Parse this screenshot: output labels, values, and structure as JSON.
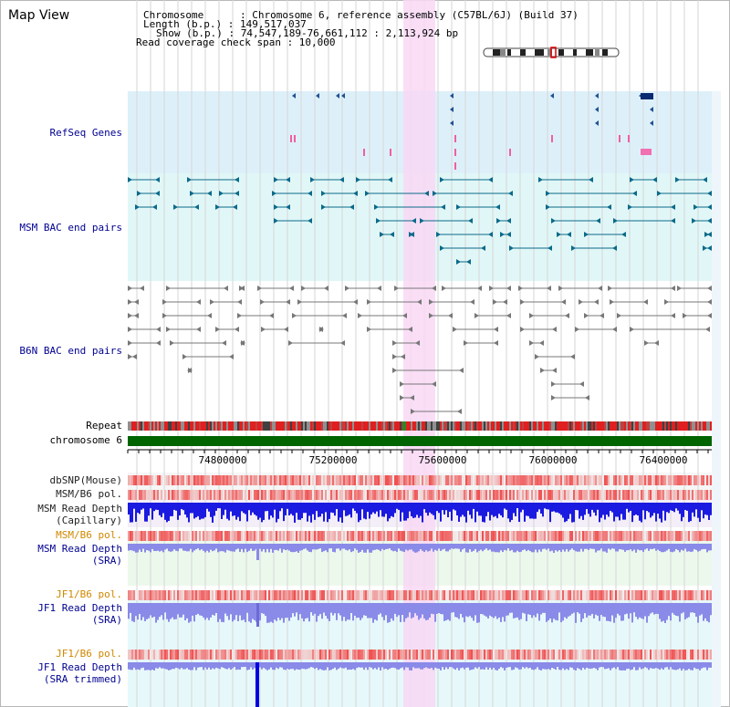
{
  "header": {
    "title": "Map View",
    "chromosome_line": "Chromosome      : Chromosome 6, reference assembly (C57BL/6J) (Build 37)",
    "length_line": "Length (b.p.) : 149,517,037",
    "show_line": "Show (b.p.) : 74,547,189-76,661,112 : 2,113,924 bp",
    "coverage_line": "Read coverage check span : 10,000"
  },
  "tracks": {
    "refseq": "RefSeq Genes",
    "msm_bac": "MSM BAC end pairs",
    "b6n_bac": "B6N BAC end pairs",
    "repeat": "Repeat",
    "chromosome": "chromosome 6",
    "dbsnp": "dbSNP(Mouse)",
    "msm_b6_pol_1": "MSM/B6 pol.",
    "msm_read_depth_cap_1": "MSM Read Depth",
    "msm_read_depth_cap_2": "(Capillary)",
    "msm_b6_pol_2": "MSM/B6 pol.",
    "msm_read_depth_sra_1": "MSM Read Depth",
    "msm_read_depth_sra_2": "(SRA)",
    "jf1_b6_pol_1": "JF1/B6 pol.",
    "jf1_read_depth_sra_1": "JF1 Read Depth",
    "jf1_read_depth_sra_2": "(SRA)",
    "jf1_b6_pol_2": "JF1/B6 pol.",
    "jf1_read_depth_trim_1": "JF1 Read Depth",
    "jf1_read_depth_trim_2": "(SRA trimmed)"
  },
  "axis": {
    "ticks": [
      "74800000",
      "75200000",
      "75600000",
      "76000000",
      "76400000"
    ]
  },
  "colors": {
    "refseq_bg": "#ddf0fa",
    "msm_bg": "#e1f7f7",
    "b6n_bg": "#ffffff",
    "highlight": "#f8d8f4",
    "chromosome_bar": "#006400",
    "msm_feature": "#0a6a8a",
    "b6n_feature": "#777777",
    "depth_blue": "#1a1ae0",
    "depth_sra": "#8a8ae8",
    "pol_red": "#f04848"
  }
}
